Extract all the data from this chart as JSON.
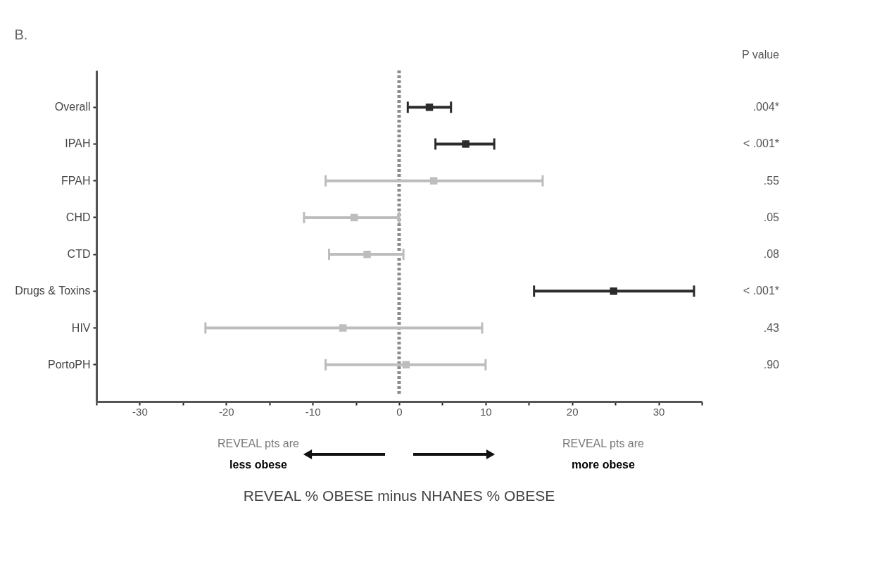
{
  "chart_data": {
    "type": "scatter",
    "orientation": "horizontal",
    "title": "B.",
    "xlabel": "REVEAL % OBESE minus NHANES % OBESE",
    "categories": [
      "Overall",
      "IPAH",
      "FPAH",
      "CHD",
      "CTD",
      "Drugs & Toxins",
      "HIV",
      "PortoPH"
    ],
    "values": [
      3.5,
      7.7,
      4.0,
      -5.2,
      -3.7,
      24.8,
      -6.5,
      0.8
    ],
    "errors": [
      [
        1.0,
        6.0
      ],
      [
        4.2,
        11.0
      ],
      [
        -8.5,
        16.6
      ],
      [
        -11.0,
        0.0
      ],
      [
        -8.1,
        0.5
      ],
      [
        15.6,
        34.1
      ],
      [
        -22.4,
        9.6
      ],
      [
        -8.5,
        10.0
      ]
    ],
    "colors": [
      "#2b2b2b",
      "#2b2b2b",
      "#bdbdbd",
      "#bdbdbd",
      "#bdbdbd",
      "#2b2b2b",
      "#bdbdbd",
      "#bdbdbd"
    ],
    "marker": "square",
    "xlim": [
      -35,
      35
    ],
    "xticks": [
      {
        "value": -35,
        "label": null
      },
      -30,
      {
        "value": -25,
        "label": null
      },
      -20,
      {
        "value": -15,
        "label": null
      },
      -10,
      {
        "value": -5,
        "label": null
      },
      0,
      {
        "value": 5,
        "label": null
      },
      10,
      {
        "value": 15,
        "label": null
      },
      20,
      {
        "value": 25,
        "label": null
      },
      30,
      {
        "value": 35,
        "label": null
      }
    ],
    "ref_lines": [
      {
        "axis": "x",
        "value": 0,
        "line_style": "dotted",
        "color": "#8c8c8c"
      }
    ],
    "grid": false,
    "annotations": [
      "P value",
      "REVEAL pts are",
      "less obese",
      "REVEAL pts are",
      "more obese",
      ".004*",
      "< .001*",
      ".55",
      ".05",
      ".08",
      "< .001*",
      ".43",
      ".90"
    ]
  }
}
